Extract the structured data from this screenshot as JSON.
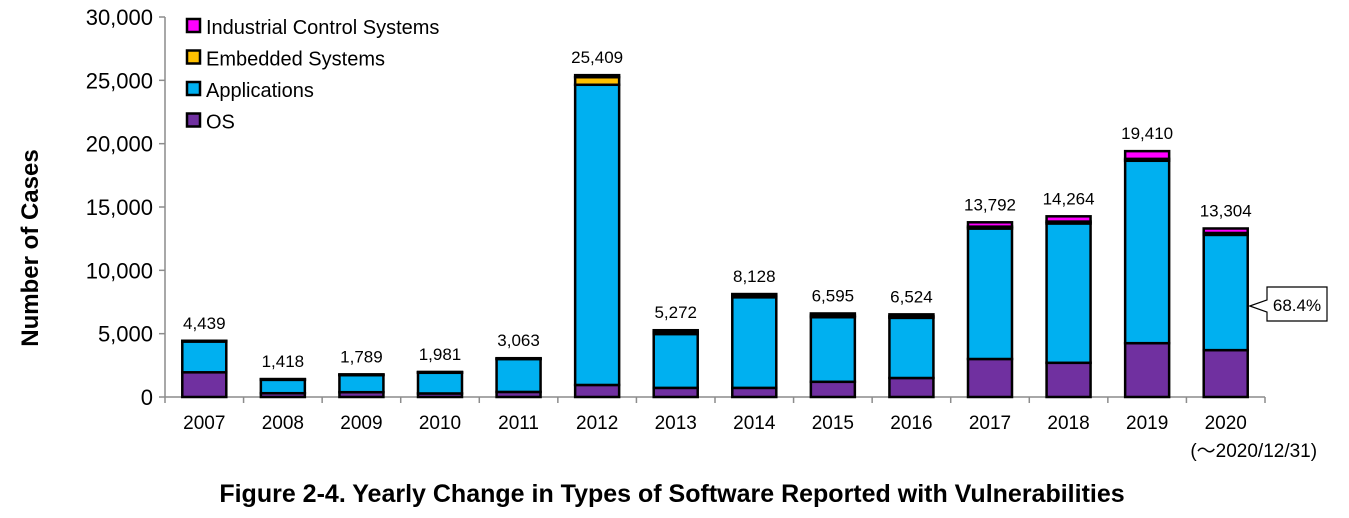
{
  "chart_data": {
    "type": "bar",
    "stacked": true,
    "title": "Figure 2-4. Yearly Change in Types of Software Reported with Vulnerabilities",
    "ylabel": "Number of Cases",
    "xlabel": "",
    "ylim": [
      0,
      30000
    ],
    "yticks": [
      0,
      5000,
      10000,
      15000,
      20000,
      25000,
      30000
    ],
    "ytick_labels": [
      "0",
      "5,000",
      "10,000",
      "15,000",
      "20,000",
      "25,000",
      "30,000"
    ],
    "grid": false,
    "legend_position": "top-left",
    "categories": [
      "2007",
      "2008",
      "2009",
      "2010",
      "2011",
      "2012",
      "2013",
      "2014",
      "2015",
      "2016",
      "2017",
      "2018",
      "2019",
      "2020"
    ],
    "last_category_note": "(～2020/12/31)",
    "totals": [
      "4,439",
      "1,418",
      "1,789",
      "1,981",
      "3,063",
      "25,409",
      "5,272",
      "8,128",
      "6,595",
      "6,524",
      "13,792",
      "14,264",
      "19,410",
      "13,304"
    ],
    "series": [
      {
        "name": "OS",
        "color": "#7030A0",
        "values": [
          1950,
          300,
          380,
          280,
          400,
          950,
          720,
          720,
          1200,
          1500,
          3000,
          2700,
          4250,
          3700
        ]
      },
      {
        "name": "Applications",
        "color": "#00B0F0",
        "values": [
          2440,
          1070,
          1360,
          1650,
          2600,
          23700,
          4250,
          7150,
          5100,
          4750,
          10300,
          11000,
          14400,
          9100
        ]
      },
      {
        "name": "Embedded Systems",
        "color": "#FFC000",
        "values": [
          20,
          20,
          20,
          20,
          30,
          600,
          150,
          130,
          130,
          130,
          150,
          150,
          150,
          150
        ]
      },
      {
        "name": "Industrial Control Systems",
        "color": "#FF00FF",
        "values": [
          29,
          28,
          29,
          31,
          33,
          159,
          152,
          128,
          165,
          144,
          342,
          414,
          610,
          354
        ]
      }
    ],
    "legend_order": [
      "Industrial Control Systems",
      "Embedded Systems",
      "Applications",
      "OS"
    ],
    "annotation": {
      "text": "68.4%",
      "category": "2020"
    }
  }
}
